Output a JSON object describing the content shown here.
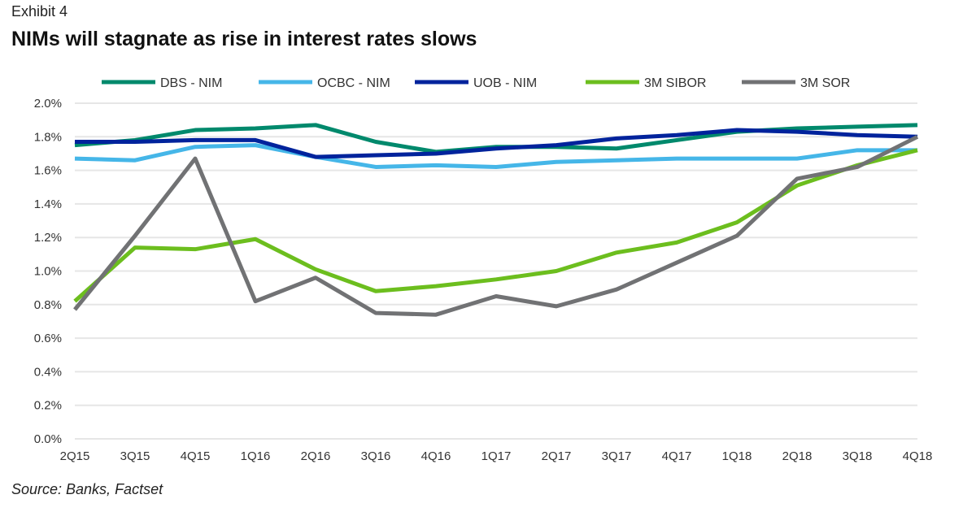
{
  "header": {
    "exhibit": "Exhibit 4",
    "title": "NIMs will stagnate as rise in interest rates slows"
  },
  "footer": {
    "source": "Source: Banks, Factset"
  },
  "chart_data": {
    "type": "line",
    "title": "NIMs will stagnate as rise in interest rates slows",
    "xlabel": "",
    "ylabel": "",
    "ylim": [
      0,
      2.0
    ],
    "yticks": [
      "0.0%",
      "0.2%",
      "0.4%",
      "0.6%",
      "0.8%",
      "1.0%",
      "1.2%",
      "1.4%",
      "1.6%",
      "1.8%",
      "2.0%"
    ],
    "grid": true,
    "legend": "top",
    "categories": [
      "2Q15",
      "3Q15",
      "4Q15",
      "1Q16",
      "2Q16",
      "3Q16",
      "4Q16",
      "1Q17",
      "2Q17",
      "3Q17",
      "4Q17",
      "1Q18",
      "2Q18",
      "3Q18",
      "4Q18"
    ],
    "series": [
      {
        "name": "DBS - NIM",
        "color": "#00896c",
        "values": [
          1.75,
          1.78,
          1.84,
          1.85,
          1.87,
          1.77,
          1.71,
          1.74,
          1.74,
          1.73,
          1.78,
          1.83,
          1.85,
          1.86,
          1.87
        ]
      },
      {
        "name": "OCBC - NIM",
        "color": "#45b6e8",
        "values": [
          1.67,
          1.66,
          1.74,
          1.75,
          1.68,
          1.62,
          1.63,
          1.62,
          1.65,
          1.66,
          1.67,
          1.67,
          1.67,
          1.72,
          1.72
        ]
      },
      {
        "name": "UOB - NIM",
        "color": "#00239c",
        "values": [
          1.77,
          1.77,
          1.78,
          1.78,
          1.68,
          1.69,
          1.7,
          1.73,
          1.75,
          1.79,
          1.81,
          1.84,
          1.83,
          1.81,
          1.8
        ]
      },
      {
        "name": "3M SIBOR",
        "color": "#6cbe1e",
        "values": [
          0.82,
          1.14,
          1.13,
          1.19,
          1.01,
          0.88,
          0.91,
          0.95,
          1.0,
          1.11,
          1.17,
          1.29,
          1.51,
          1.63,
          1.72
        ]
      },
      {
        "name": "3M SOR",
        "color": "#717274",
        "values": [
          0.77,
          1.21,
          1.67,
          0.82,
          0.96,
          0.75,
          0.74,
          0.85,
          0.79,
          0.89,
          1.05,
          1.21,
          1.55,
          1.62,
          1.8
        ]
      }
    ]
  }
}
